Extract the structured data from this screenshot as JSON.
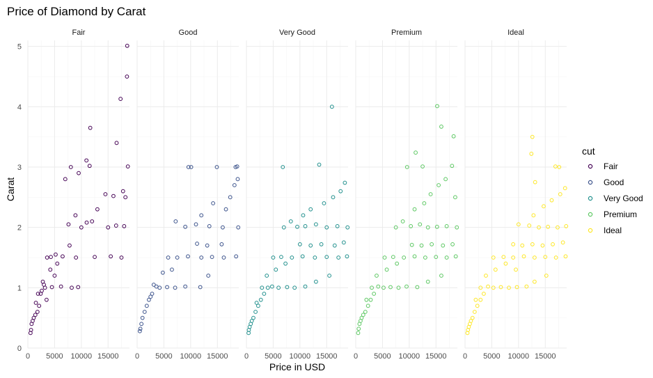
{
  "chart_data": {
    "type": "scatter",
    "title": "Price of Diamond by Carat",
    "xlabel": "Price in USD",
    "ylabel": "Carat",
    "xlim": [
      0,
      19000
    ],
    "ylim": [
      0,
      5.1
    ],
    "x_ticks": [
      0,
      5000,
      10000,
      15000
    ],
    "x_tick_labels": [
      "0",
      "5000",
      "10000",
      "15000"
    ],
    "y_ticks": [
      0,
      1,
      2,
      3,
      4,
      5
    ],
    "y_tick_labels": [
      "0",
      "1",
      "2",
      "3",
      "4",
      "5"
    ],
    "grid": true,
    "facet_by": "cut",
    "legend": {
      "title": "cut",
      "placement": "right"
    },
    "series": [
      {
        "name": "Fair",
        "color": "#440154",
        "points": [
          [
            18574,
            5.01
          ],
          [
            18531,
            4.5
          ],
          [
            17329,
            4.13
          ],
          [
            11668,
            3.65
          ],
          [
            16593,
            3.4
          ],
          [
            10953,
            3.11
          ],
          [
            18701,
            3.01
          ],
          [
            8040,
            3.0
          ],
          [
            11548,
            3.02
          ],
          [
            18242,
            2.5
          ],
          [
            14500,
            2.55
          ],
          [
            16000,
            2.52
          ],
          [
            17800,
            2.6
          ],
          [
            13000,
            2.3
          ],
          [
            7000,
            2.8
          ],
          [
            9500,
            2.9
          ],
          [
            12000,
            2.1
          ],
          [
            15000,
            2.0
          ],
          [
            18000,
            2.02
          ],
          [
            10000,
            2.0
          ],
          [
            7600,
            2.05
          ],
          [
            8900,
            2.2
          ],
          [
            16500,
            2.03
          ],
          [
            11000,
            2.08
          ],
          [
            6500,
            1.52
          ],
          [
            9000,
            1.5
          ],
          [
            12500,
            1.51
          ],
          [
            15500,
            1.52
          ],
          [
            17500,
            1.5
          ],
          [
            5200,
            1.55
          ],
          [
            7800,
            1.7
          ],
          [
            4300,
            1.51
          ],
          [
            3600,
            1.5
          ],
          [
            5000,
            1.2
          ],
          [
            6200,
            1.02
          ],
          [
            4500,
            1.01
          ],
          [
            8200,
            1.0
          ],
          [
            9400,
            1.01
          ],
          [
            3200,
            1.0
          ],
          [
            2800,
            1.1
          ],
          [
            4200,
            1.3
          ],
          [
            5500,
            1.4
          ],
          [
            2400,
            0.9
          ],
          [
            3500,
            0.8
          ],
          [
            2100,
            0.7
          ],
          [
            1800,
            0.6
          ],
          [
            1400,
            0.55
          ],
          [
            1100,
            0.5
          ],
          [
            900,
            0.45
          ],
          [
            700,
            0.4
          ],
          [
            1500,
            0.75
          ],
          [
            600,
            0.3
          ],
          [
            500,
            0.25
          ],
          [
            1900,
            0.9
          ],
          [
            3000,
            1.05
          ],
          [
            2600,
            0.95
          ]
        ]
      },
      {
        "name": "Good",
        "color": "#3b528b",
        "points": [
          [
            18700,
            3.01
          ],
          [
            18400,
            3.0
          ],
          [
            14900,
            3.0
          ],
          [
            10100,
            3.0
          ],
          [
            9600,
            3.0
          ],
          [
            18800,
            2.8
          ],
          [
            18200,
            2.7
          ],
          [
            17400,
            2.5
          ],
          [
            16600,
            2.3
          ],
          [
            14200,
            2.4
          ],
          [
            12000,
            2.2
          ],
          [
            18900,
            2.0
          ],
          [
            16000,
            2.0
          ],
          [
            13500,
            2.02
          ],
          [
            11000,
            2.05
          ],
          [
            9000,
            2.01
          ],
          [
            7200,
            2.1
          ],
          [
            15800,
            1.72
          ],
          [
            13100,
            1.7
          ],
          [
            11200,
            1.73
          ],
          [
            18500,
            1.52
          ],
          [
            16200,
            1.5
          ],
          [
            14000,
            1.51
          ],
          [
            12000,
            1.5
          ],
          [
            9500,
            1.52
          ],
          [
            7500,
            1.5
          ],
          [
            5800,
            1.5
          ],
          [
            13300,
            1.2
          ],
          [
            11800,
            1.01
          ],
          [
            9000,
            1.02
          ],
          [
            7100,
            1.0
          ],
          [
            5600,
            1.01
          ],
          [
            4200,
            1.0
          ],
          [
            3600,
            1.02
          ],
          [
            4800,
            1.25
          ],
          [
            6500,
            1.3
          ],
          [
            2800,
            0.9
          ],
          [
            2200,
            0.8
          ],
          [
            1800,
            0.7
          ],
          [
            1400,
            0.6
          ],
          [
            1000,
            0.5
          ],
          [
            800,
            0.4
          ],
          [
            600,
            0.32
          ],
          [
            500,
            0.28
          ],
          [
            3100,
            1.05
          ],
          [
            2500,
            0.85
          ]
        ]
      },
      {
        "name": "Very Good",
        "color": "#21908d",
        "points": [
          [
            15984,
            4.0
          ],
          [
            13600,
            3.04
          ],
          [
            6800,
            3.0
          ],
          [
            18400,
            2.74
          ],
          [
            17600,
            2.6
          ],
          [
            16200,
            2.5
          ],
          [
            14500,
            2.4
          ],
          [
            12000,
            2.3
          ],
          [
            10600,
            2.2
          ],
          [
            18900,
            2.0
          ],
          [
            17000,
            2.02
          ],
          [
            15000,
            2.0
          ],
          [
            13000,
            2.05
          ],
          [
            11000,
            2.02
          ],
          [
            9500,
            2.01
          ],
          [
            8300,
            2.1
          ],
          [
            7000,
            2.0
          ],
          [
            18200,
            1.75
          ],
          [
            16500,
            1.7
          ],
          [
            14000,
            1.72
          ],
          [
            12000,
            1.7
          ],
          [
            10000,
            1.72
          ],
          [
            18800,
            1.52
          ],
          [
            17200,
            1.5
          ],
          [
            15000,
            1.51
          ],
          [
            12800,
            1.5
          ],
          [
            10500,
            1.52
          ],
          [
            8500,
            1.5
          ],
          [
            6500,
            1.51
          ],
          [
            5000,
            1.5
          ],
          [
            15500,
            1.2
          ],
          [
            13000,
            1.1
          ],
          [
            11000,
            1.02
          ],
          [
            9000,
            1.0
          ],
          [
            7600,
            1.01
          ],
          [
            6000,
            1.0
          ],
          [
            4800,
            1.02
          ],
          [
            4000,
            1.0
          ],
          [
            3300,
            0.9
          ],
          [
            2700,
            0.8
          ],
          [
            2200,
            0.7
          ],
          [
            1700,
            0.6
          ],
          [
            1300,
            0.5
          ],
          [
            1000,
            0.45
          ],
          [
            800,
            0.4
          ],
          [
            600,
            0.35
          ],
          [
            450,
            0.3
          ],
          [
            400,
            0.25
          ],
          [
            3800,
            1.2
          ],
          [
            5500,
            1.3
          ],
          [
            7300,
            1.4
          ],
          [
            2900,
            1.0
          ],
          [
            1900,
            0.75
          ]
        ]
      },
      {
        "name": "Premium",
        "color": "#5dc863",
        "points": [
          [
            15223,
            4.01
          ],
          [
            16000,
            3.67
          ],
          [
            18300,
            3.51
          ],
          [
            11200,
            3.24
          ],
          [
            12500,
            3.01
          ],
          [
            18000,
            3.02
          ],
          [
            9600,
            3.0
          ],
          [
            16800,
            2.8
          ],
          [
            15500,
            2.7
          ],
          [
            14000,
            2.55
          ],
          [
            18600,
            2.5
          ],
          [
            12800,
            2.4
          ],
          [
            11000,
            2.3
          ],
          [
            18900,
            2.0
          ],
          [
            17000,
            2.02
          ],
          [
            15200,
            2.01
          ],
          [
            13500,
            2.0
          ],
          [
            12000,
            2.05
          ],
          [
            10300,
            2.02
          ],
          [
            8800,
            2.1
          ],
          [
            7500,
            2.0
          ],
          [
            18100,
            1.72
          ],
          [
            16300,
            1.7
          ],
          [
            14200,
            1.72
          ],
          [
            12300,
            1.7
          ],
          [
            10500,
            1.71
          ],
          [
            18700,
            1.52
          ],
          [
            17000,
            1.5
          ],
          [
            15000,
            1.51
          ],
          [
            13000,
            1.5
          ],
          [
            11000,
            1.52
          ],
          [
            9000,
            1.5
          ],
          [
            7000,
            1.51
          ],
          [
            5400,
            1.5
          ],
          [
            16000,
            1.2
          ],
          [
            13500,
            1.1
          ],
          [
            11500,
            1.01
          ],
          [
            9500,
            1.02
          ],
          [
            8000,
            1.0
          ],
          [
            6500,
            1.01
          ],
          [
            5200,
            1.0
          ],
          [
            4200,
            1.02
          ],
          [
            3400,
            0.9
          ],
          [
            2800,
            0.8
          ],
          [
            2300,
            0.7
          ],
          [
            1800,
            0.6
          ],
          [
            1400,
            0.55
          ],
          [
            1100,
            0.5
          ],
          [
            900,
            0.45
          ],
          [
            700,
            0.4
          ],
          [
            550,
            0.32
          ],
          [
            450,
            0.25
          ],
          [
            3900,
            1.2
          ],
          [
            5800,
            1.3
          ],
          [
            7700,
            1.4
          ],
          [
            3000,
            1.0
          ],
          [
            2000,
            0.8
          ]
        ]
      },
      {
        "name": "Ideal",
        "color": "#fde725",
        "points": [
          [
            12587,
            3.5
          ],
          [
            12400,
            3.22
          ],
          [
            16900,
            3.01
          ],
          [
            17600,
            3.0
          ],
          [
            13100,
            2.75
          ],
          [
            18700,
            2.65
          ],
          [
            17800,
            2.55
          ],
          [
            16200,
            2.45
          ],
          [
            14700,
            2.35
          ],
          [
            12800,
            2.2
          ],
          [
            18900,
            2.02
          ],
          [
            17300,
            2.0
          ],
          [
            15500,
            2.01
          ],
          [
            13800,
            2.0
          ],
          [
            12000,
            2.03
          ],
          [
            10000,
            2.05
          ],
          [
            18300,
            1.75
          ],
          [
            16400,
            1.72
          ],
          [
            14500,
            1.7
          ],
          [
            12600,
            1.72
          ],
          [
            10700,
            1.7
          ],
          [
            9000,
            1.72
          ],
          [
            18800,
            1.52
          ],
          [
            17000,
            1.5
          ],
          [
            15000,
            1.51
          ],
          [
            13000,
            1.5
          ],
          [
            11000,
            1.52
          ],
          [
            9000,
            1.5
          ],
          [
            7200,
            1.51
          ],
          [
            5300,
            1.5
          ],
          [
            15200,
            1.2
          ],
          [
            13000,
            1.1
          ],
          [
            11500,
            1.02
          ],
          [
            9700,
            1.01
          ],
          [
            8200,
            1.0
          ],
          [
            6700,
            1.01
          ],
          [
            5300,
            1.0
          ],
          [
            4300,
            1.02
          ],
          [
            3500,
            0.9
          ],
          [
            2900,
            0.8
          ],
          [
            2300,
            0.7
          ],
          [
            1800,
            0.6
          ],
          [
            1400,
            0.5
          ],
          [
            1100,
            0.45
          ],
          [
            900,
            0.4
          ],
          [
            700,
            0.35
          ],
          [
            550,
            0.3
          ],
          [
            450,
            0.25
          ],
          [
            3900,
            1.2
          ],
          [
            5700,
            1.3
          ],
          [
            7600,
            1.4
          ],
          [
            9500,
            1.3
          ],
          [
            2900,
            1.0
          ],
          [
            2000,
            0.8
          ]
        ]
      }
    ]
  }
}
